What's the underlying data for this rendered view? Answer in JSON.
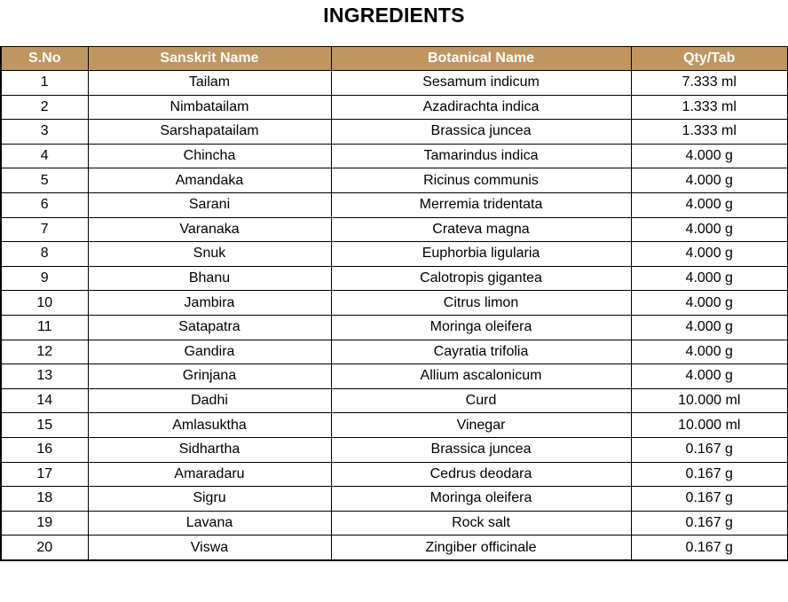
{
  "title": "INGREDIENTS",
  "table": {
    "headers": [
      "S.No",
      "Sanskrit Name",
      "Botanical Name",
      "Qty/Tab"
    ],
    "rows": [
      [
        "1",
        "Tailam",
        "Sesamum indicum",
        "7.333 ml"
      ],
      [
        "2",
        "Nimbatailam",
        "Azadirachta indica",
        "1.333 ml"
      ],
      [
        "3",
        "Sarshapatailam",
        "Brassica juncea",
        "1.333 ml"
      ],
      [
        "4",
        "Chincha",
        "Tamarindus indica",
        "4.000 g"
      ],
      [
        "5",
        "Amandaka",
        "Ricinus communis",
        "4.000 g"
      ],
      [
        "6",
        "Sarani",
        "Merremia tridentata",
        "4.000 g"
      ],
      [
        "7",
        "Varanaka",
        "Crateva magna",
        "4.000 g"
      ],
      [
        "8",
        "Snuk",
        "Euphorbia ligularia",
        "4.000 g"
      ],
      [
        "9",
        "Bhanu",
        "Calotropis gigantea",
        "4.000 g"
      ],
      [
        "10",
        "Jambira",
        "Citrus limon",
        "4.000 g"
      ],
      [
        "11",
        "Satapatra",
        "Moringa oleifera",
        "4.000 g"
      ],
      [
        "12",
        "Gandira",
        "Cayratia trifolia",
        "4.000 g"
      ],
      [
        "13",
        "Grinjana",
        "Allium ascalonicum",
        "4.000 g"
      ],
      [
        "14",
        "Dadhi",
        "Curd",
        "10.000 ml"
      ],
      [
        "15",
        "Amlasuktha",
        "Vinegar",
        "10.000 ml"
      ],
      [
        "16",
        "Sidhartha",
        "Brassica juncea",
        "0.167 g"
      ],
      [
        "17",
        "Amaradaru",
        "Cedrus deodara",
        "0.167 g"
      ],
      [
        "18",
        "Sigru",
        "Moringa oleifera",
        "0.167 g"
      ],
      [
        "19",
        "Lavana",
        "Rock salt",
        "0.167 g"
      ],
      [
        "20",
        "Viswa",
        "Zingiber officinale",
        "0.167 g"
      ]
    ]
  },
  "colors": {
    "header_background": "#c09660",
    "header_text": "#ffffff",
    "border": "#000000"
  }
}
